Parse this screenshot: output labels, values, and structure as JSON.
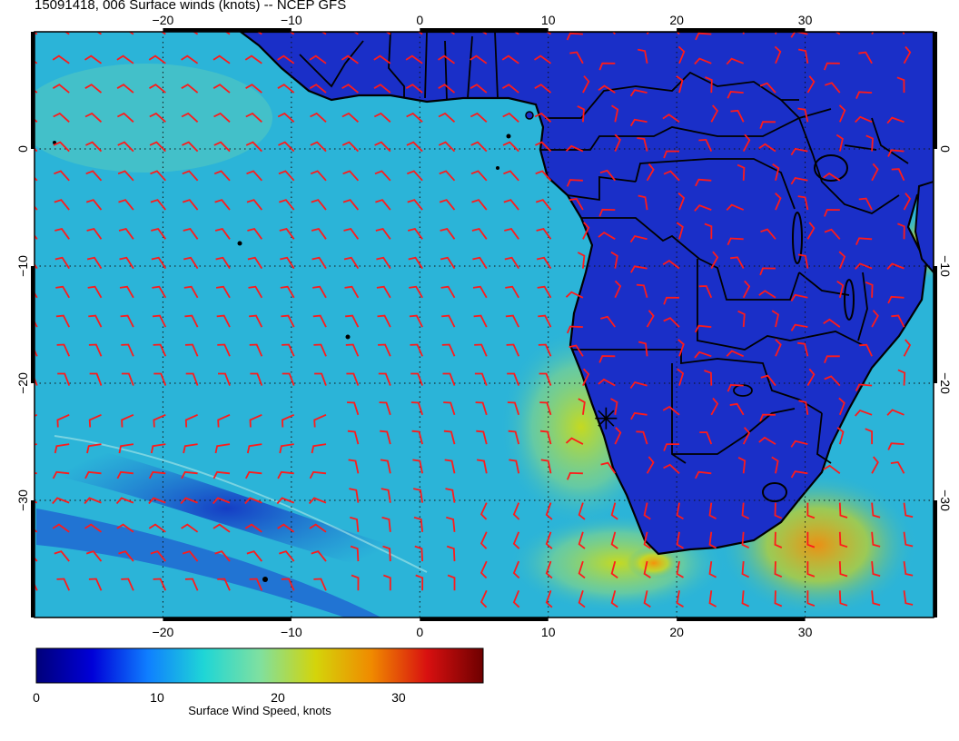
{
  "title": "15091418, 006 Surface winds (knots) -- NCEP GFS",
  "map": {
    "lon_range": [
      -30,
      40
    ],
    "lat_range": [
      -40,
      10
    ],
    "lon_ticks": [
      "−20",
      "−10",
      "0",
      "10",
      "20",
      "30"
    ],
    "lat_ticks": [
      "0",
      "−10",
      "−20",
      "−30"
    ],
    "grid_lons": [
      -20,
      -10,
      0,
      10,
      20,
      30
    ],
    "grid_lats": [
      0,
      -10,
      -20,
      -30
    ],
    "barb_color": "#ff1a1a",
    "land_color": "#1a2fc8",
    "ocean_color": "#2bb4d8",
    "marker": {
      "lon": 14.5,
      "lat": -23.0
    }
  },
  "colorbar": {
    "label": "Surface Wind Speed, knots",
    "range": [
      0,
      37
    ],
    "ticks": [
      "0",
      "10",
      "20",
      "30"
    ],
    "tick_values": [
      0,
      10,
      20,
      30
    ],
    "colors": [
      "#00007a",
      "#0000d8",
      "#0f7fff",
      "#1fd6d6",
      "#7fe0a0",
      "#d4d40a",
      "#f08a00",
      "#d81010",
      "#6e0000"
    ]
  }
}
